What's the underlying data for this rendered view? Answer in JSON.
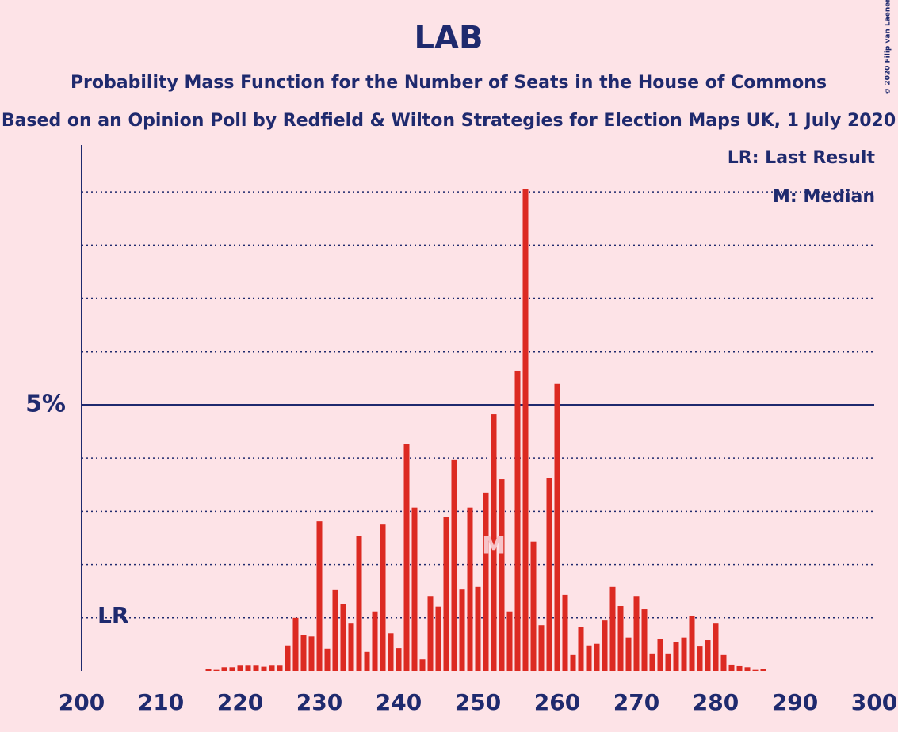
{
  "chart_data": {
    "type": "bar",
    "title": "LAB",
    "subtitle": "Probability Mass Function for the Number of Seats in the House of Commons",
    "subtitle2": "Based on an Opinion Poll by Redfield & Wilton Strategies for Election Maps UK, 1 July 2020",
    "copyright": "© 2020 Filip van Laenen",
    "legend_texts": [
      "LR: Last Result",
      "M: Median"
    ],
    "legend_position": "top-right",
    "last_result": {
      "label": "LR",
      "x": 202
    },
    "median": {
      "label": "M",
      "x": 252
    },
    "color": "#dc2a22",
    "x": [
      200,
      201,
      202,
      203,
      204,
      205,
      206,
      207,
      208,
      209,
      210,
      211,
      212,
      213,
      214,
      215,
      216,
      217,
      218,
      219,
      220,
      221,
      222,
      223,
      224,
      225,
      226,
      227,
      228,
      229,
      230,
      231,
      232,
      233,
      234,
      235,
      236,
      237,
      238,
      239,
      240,
      241,
      242,
      243,
      244,
      245,
      246,
      247,
      248,
      249,
      250,
      251,
      252,
      253,
      254,
      255,
      256,
      257,
      258,
      259,
      260,
      261,
      262,
      263,
      264,
      265,
      266,
      267,
      268,
      269,
      270,
      271,
      272,
      273,
      274,
      275,
      276,
      277,
      278,
      279,
      280,
      281,
      282,
      283,
      284,
      285,
      286,
      287,
      288,
      289,
      290,
      291,
      292,
      293,
      294,
      295,
      296,
      297,
      298,
      299,
      300
    ],
    "values": [
      0,
      0,
      0,
      0,
      0,
      0,
      0,
      0,
      0,
      0,
      0,
      0,
      0,
      0,
      0,
      0,
      0.03,
      0.02,
      0.07,
      0.07,
      0.1,
      0.1,
      0.1,
      0.08,
      0.1,
      0.1,
      0.48,
      1.0,
      0.68,
      0.65,
      2.81,
      0.42,
      1.52,
      1.25,
      0.89,
      2.53,
      0.36,
      1.12,
      2.75,
      0.71,
      0.43,
      4.26,
      3.07,
      0.22,
      1.41,
      1.21,
      2.9,
      3.96,
      1.53,
      3.07,
      1.58,
      3.35,
      4.82,
      3.6,
      1.12,
      5.64,
      9.06,
      2.43,
      0.86,
      3.62,
      5.39,
      1.43,
      0.3,
      0.82,
      0.48,
      0.51,
      0.95,
      1.58,
      1.22,
      0.63,
      1.41,
      1.16,
      0.33,
      0.61,
      0.33,
      0.55,
      0.63,
      1.03,
      0.46,
      0.58,
      0.89,
      0.3,
      0.12,
      0.09,
      0.07,
      0.02,
      0.04,
      0,
      0,
      0,
      0,
      0,
      0,
      0,
      0,
      0,
      0,
      0,
      0,
      0,
      0
    ],
    "xlim": [
      200,
      300
    ],
    "xticks": [
      200,
      210,
      220,
      230,
      240,
      250,
      260,
      270,
      280,
      290,
      300
    ],
    "ylim": [
      0,
      9.88
    ],
    "yticks": [
      {
        "value": 5,
        "label": "5%"
      }
    ],
    "dotted_grid": [
      1,
      2,
      3,
      4,
      6,
      7,
      8,
      9
    ]
  }
}
